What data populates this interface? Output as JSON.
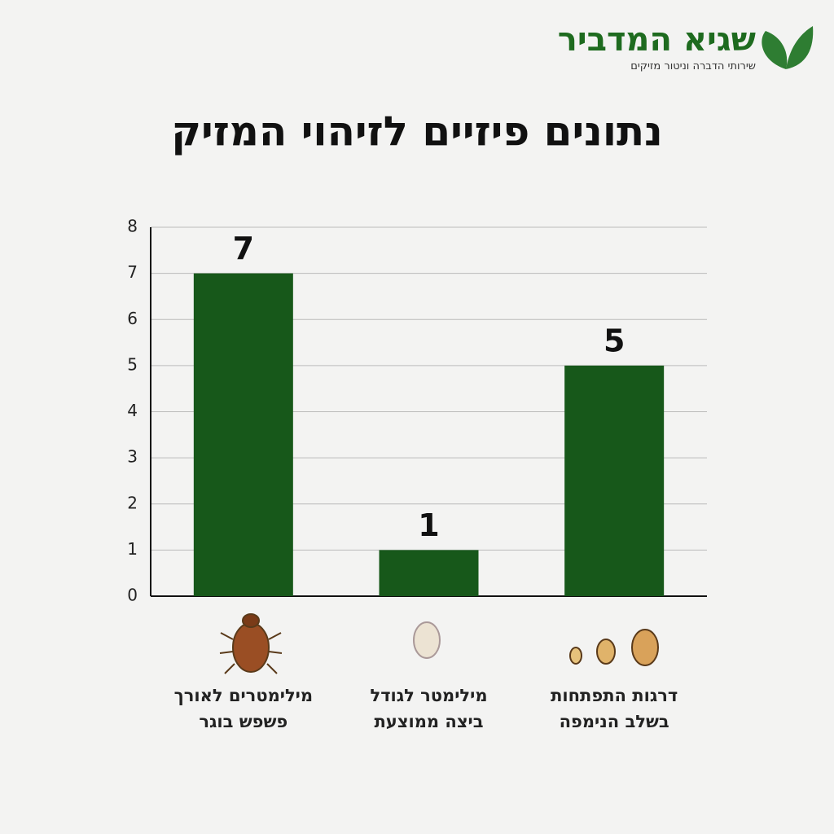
{
  "logo": {
    "name": "שגיא המדביר",
    "tagline": "שירותי הדברה וניטור מזיקים"
  },
  "chart_data": {
    "type": "bar",
    "title": "נתונים פיזיים לזיהוי המזיק",
    "categories": [
      "מילימטרים לאורך\nפשפש בוגר",
      "מילימטר לגודל\nביצה ממוצעת",
      "דרגות התפתחות\nבשלב הנימפה"
    ],
    "values": [
      7,
      1,
      5
    ],
    "color": "#17581a",
    "ylim": [
      0,
      8
    ],
    "yticks": [
      0,
      1,
      2,
      3,
      4,
      5,
      6,
      7,
      8
    ],
    "grid": true
  }
}
